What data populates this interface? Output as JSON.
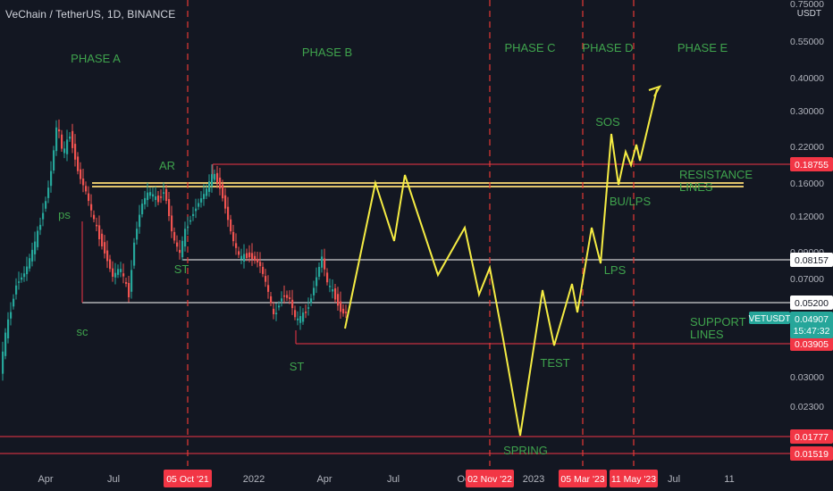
{
  "header": {
    "symbol_line": "VeChain / TetherUS, 1D, BINANCE"
  },
  "axis": {
    "unit_label": "USDT"
  },
  "chart_data": {
    "type": "candlestick-annotated",
    "title": "VeChain / TetherUS, 1D, BINANCE",
    "y_scale": "log",
    "y_ticks": [
      "0.75000",
      "0.55000",
      "0.40000",
      "0.30000",
      "0.22000",
      "0.16000",
      "0.12000",
      "0.09000",
      "0.07000",
      "0.05200",
      "0.03000",
      "0.02300",
      "0.01777"
    ],
    "x_ticks": [
      "Apr",
      "Jul",
      "Oct",
      "2022",
      "Apr",
      "Jul",
      "Oct",
      "2023",
      "Mar",
      "May",
      "Jul",
      "11"
    ],
    "highlighted_dates": [
      "05 Oct '21",
      "02 Nov '22",
      "05 Mar '23",
      "11 May '23"
    ],
    "phases": [
      "PHASE A",
      "PHASE B",
      "PHASE C",
      "PHASE D",
      "PHASE E"
    ],
    "annotations": [
      "ps",
      "sc",
      "AR",
      "ST",
      "ST",
      "SPRING",
      "TEST",
      "LPS",
      "SOS",
      "BU/LPS",
      "RESISTANCE\nLINES",
      "SUPPORT\nLINES"
    ],
    "price_levels": [
      {
        "value": "0.18755",
        "color": "#f23645"
      },
      {
        "value": "0.08157",
        "color": "#ffffff"
      },
      {
        "value": "0.05200",
        "color": "#ffffff"
      },
      {
        "value": "0.03905",
        "color": "#f23645"
      },
      {
        "value": "0.01777",
        "color": "#f23645"
      },
      {
        "value": "0.01519",
        "color": "#f23645"
      }
    ],
    "current_price": {
      "symbol": "VETUSDT",
      "value": "0.04907",
      "countdown": "15:47:32",
      "color": "#26a69a"
    },
    "colors": {
      "up": "#26a69a",
      "down": "#ef5350",
      "projection": "#f5ec43",
      "annotation": "#3fa34d",
      "phase_divider": "#e53935"
    }
  }
}
